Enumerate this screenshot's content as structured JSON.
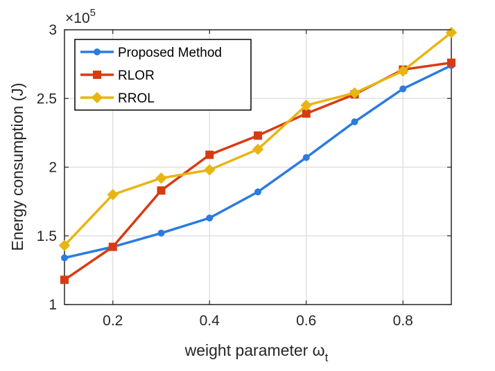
{
  "chart_data": {
    "type": "line",
    "x": [
      0.1,
      0.2,
      0.3,
      0.4,
      0.5,
      0.6,
      0.7,
      0.8,
      0.9
    ],
    "series": [
      {
        "name": "Proposed Method",
        "values": [
          134000,
          142000,
          152000,
          163000,
          182000,
          207000,
          233000,
          257000,
          274000
        ],
        "color": "#2b7be0",
        "marker": "circle"
      },
      {
        "name": "RLOR",
        "values": [
          118000,
          142000,
          183000,
          209000,
          223000,
          239000,
          253000,
          271000,
          276000
        ],
        "color": "#d93a10",
        "marker": "square"
      },
      {
        "name": "RROL",
        "values": [
          143000,
          180000,
          192000,
          198000,
          213000,
          245000,
          254000,
          270000,
          298000
        ],
        "color": "#e8b511",
        "marker": "diamond"
      }
    ],
    "xlim": [
      0.1,
      0.9
    ],
    "ylim": [
      100000,
      300000
    ],
    "xticks": [
      0.2,
      0.4,
      0.6,
      0.8
    ],
    "xtick_labels": [
      "0.2",
      "0.4",
      "0.6",
      "0.8"
    ],
    "yticks": [
      100000,
      150000,
      200000,
      250000,
      300000
    ],
    "ytick_labels": [
      "1",
      "1.5",
      "2",
      "2.5",
      "3"
    ],
    "y_exponent_label": "×10",
    "y_exponent_power": "5",
    "xlabel": "weight parameter ω",
    "xlabel_subscript": "t",
    "ylabel": "Energy consumption (J)",
    "grid": true,
    "legend_position": "top-left"
  }
}
